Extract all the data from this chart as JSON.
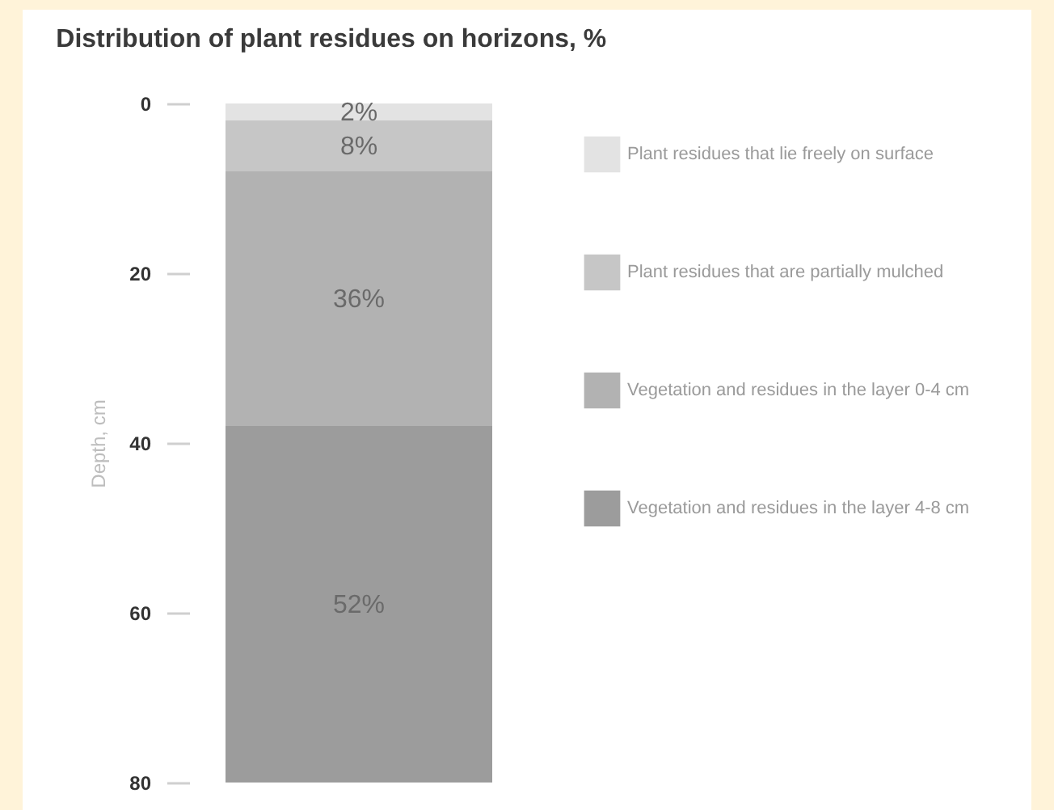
{
  "chart_data": {
    "type": "bar",
    "stacked": true,
    "title": "Distribution of plant residues on horizons, %",
    "ylabel": "Depth, cm",
    "categories": [
      null
    ],
    "series": [
      {
        "name": "Plant residues that lie freely on surface",
        "color": "#e3e3e3",
        "values": [
          2
        ]
      },
      {
        "name": "Plant residues that are partially mulched",
        "color": "#c6c6c6",
        "values": [
          6
        ]
      },
      {
        "name": "Vegetation and residues in the layer 0-4 cm",
        "color": "#b2b2b2",
        "values": [
          30
        ]
      },
      {
        "name": "Vegetation and residues in the layer 4-8 cm",
        "color": "#9c9c9c",
        "values": [
          42
        ]
      }
    ],
    "annotations": [
      "2%",
      "8%",
      "36%",
      "52%"
    ],
    "ylim": [
      80,
      0
    ],
    "yticks": [
      0,
      20,
      40,
      60,
      80
    ],
    "legend": "right",
    "grid": false
  }
}
